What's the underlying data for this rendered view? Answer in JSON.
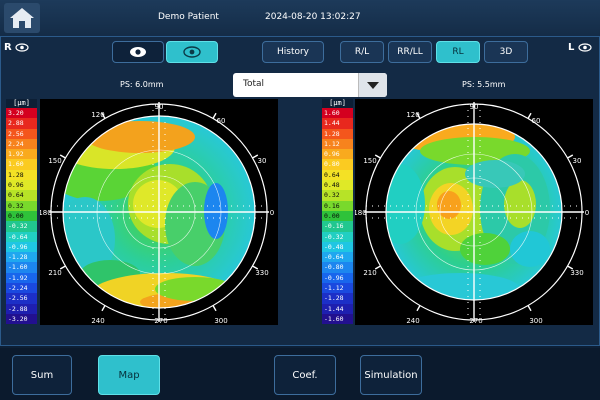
{
  "header": {
    "patient": "Demo Patient",
    "datetime": "2024-08-20 13:02:27"
  },
  "eyes": {
    "right": "R",
    "left": "L"
  },
  "toolbar": {
    "history": "History",
    "view_buttons": [
      {
        "label": "R/L",
        "active": false
      },
      {
        "label": "RR/LL",
        "active": false
      },
      {
        "label": "RL",
        "active": true
      },
      {
        "label": "3D",
        "active": false
      }
    ]
  },
  "map_select": {
    "value": "Total"
  },
  "right_map": {
    "ps": "PS: 6.0mm",
    "unit": "[µm]",
    "scale": [
      "3.20",
      "2.88",
      "2.56",
      "2.24",
      "1.92",
      "1.60",
      "1.28",
      "0.96",
      "0.64",
      "0.32",
      "0.00",
      "-0.32",
      "-0.64",
      "-0.96",
      "-1.28",
      "-1.60",
      "-1.92",
      "-2.24",
      "-2.56",
      "-2.88",
      "-3.20"
    ]
  },
  "left_map": {
    "ps": "PS: 5.5mm",
    "unit": "[µm]",
    "scale": [
      "1.60",
      "1.44",
      "1.28",
      "1.12",
      "0.96",
      "0.80",
      "0.64",
      "0.48",
      "0.32",
      "0.16",
      "0.00",
      "-0.16",
      "-0.32",
      "-0.48",
      "-0.64",
      "-0.80",
      "-0.96",
      "-1.12",
      "-1.28",
      "-1.44",
      "-1.60"
    ]
  },
  "axis_labels": [
    "90",
    "60",
    "30",
    "180",
    "0",
    "330",
    "300",
    "270",
    "240",
    "210",
    "150",
    "120"
  ],
  "scale_colors": [
    "#d4001f",
    "#e8281e",
    "#f4561c",
    "#f7831d",
    "#f9aa1e",
    "#fbcb21",
    "#f4e125",
    "#dfe927",
    "#b7e327",
    "#79d92c",
    "#2fc23a",
    "#21c78f",
    "#21cfc2",
    "#1fc6e3",
    "#1fa7ef",
    "#1c86ef",
    "#1866ec",
    "#1a49df",
    "#1c2fc7",
    "#1e1faf",
    "#22108f"
  ],
  "bottom_nav": [
    {
      "label": "Sum",
      "active": false
    },
    {
      "label": "Map",
      "active": true
    },
    {
      "label": "Coef.",
      "active": false
    },
    {
      "label": "Simulation",
      "active": false
    }
  ]
}
